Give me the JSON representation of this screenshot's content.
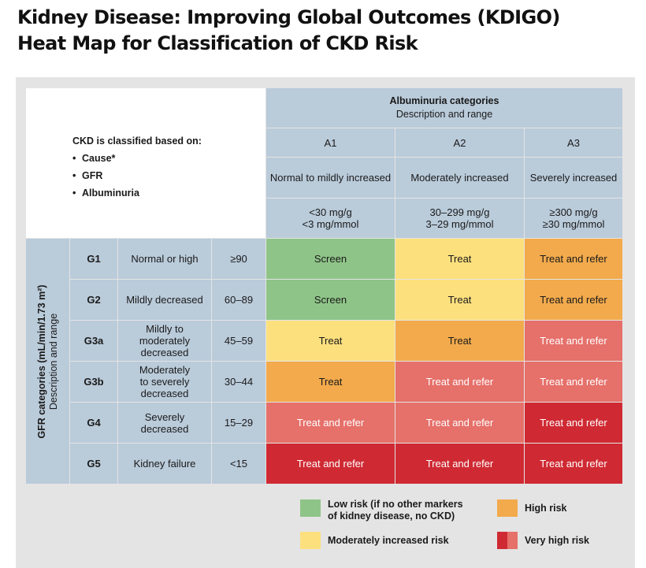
{
  "title": {
    "line1": "Kidney Disease: Improving Global Outcomes (KDIGO)",
    "line2": "Heat Map for Classification of CKD Risk"
  },
  "classification": {
    "heading": "CKD is classified based on:",
    "items": [
      "Cause*",
      "GFR",
      "Albuminuria"
    ]
  },
  "albuminuria": {
    "title": "Albuminuria categories",
    "subtitle": "Description and range",
    "categories": [
      {
        "code": "A1",
        "description": "Normal to mildly increased",
        "range": "<30 mg/g\n<3 mg/mmol"
      },
      {
        "code": "A2",
        "description": "Moderately increased",
        "range": "30–299 mg/g\n3–29 mg/mmol"
      },
      {
        "code": "A3",
        "description": "Severely increased",
        "range": "≥300 mg/g\n≥30 mg/mmol"
      }
    ]
  },
  "gfr": {
    "title": "GFR categories (mL/min/1.73 m²)",
    "subtitle": "Description and range",
    "rows": [
      {
        "code": "G1",
        "description": "Normal or high",
        "range": "≥90",
        "cells": [
          "Screen",
          "Treat",
          "Treat and refer"
        ],
        "risk": [
          "low",
          "moderate",
          "high"
        ]
      },
      {
        "code": "G2",
        "description": "Mildly decreased",
        "range": "60–89",
        "cells": [
          "Screen",
          "Treat",
          "Treat and refer"
        ],
        "risk": [
          "low",
          "moderate",
          "high"
        ]
      },
      {
        "code": "G3a",
        "description": "Mildly to\nmoderately\ndecreased",
        "range": "45–59",
        "cells": [
          "Treat",
          "Treat",
          "Treat and refer"
        ],
        "risk": [
          "moderate",
          "high",
          "very_high_light"
        ]
      },
      {
        "code": "G3b",
        "description": "Moderately\nto severely\ndecreased",
        "range": "30–44",
        "cells": [
          "Treat",
          "Treat and refer",
          "Treat and refer"
        ],
        "risk": [
          "high",
          "very_high_light",
          "very_high_light"
        ]
      },
      {
        "code": "G4",
        "description": "Severely\ndecreased",
        "range": "15–29",
        "cells": [
          "Treat and refer",
          "Treat and refer",
          "Treat and refer"
        ],
        "risk": [
          "very_high_light",
          "very_high_light",
          "very_high_dark"
        ]
      },
      {
        "code": "G5",
        "description": "Kidney failure",
        "range": "<15",
        "cells": [
          "Treat and refer",
          "Treat and refer",
          "Treat and refer"
        ],
        "risk": [
          "very_high_dark",
          "very_high_dark",
          "very_high_dark"
        ]
      }
    ]
  },
  "legend": {
    "low": "Low risk (if no other markers\nof kidney disease, no CKD)",
    "moderate": "Moderately increased risk",
    "high": "High risk",
    "very_high": "Very high risk"
  },
  "colors": {
    "low": "#8fc488",
    "moderate": "#fde07e",
    "high": "#f2aa4c",
    "very_high_light": "#e6706a",
    "very_high_dark": "#cf2a33",
    "header": "#bacbda",
    "panel": "#e4e4e4"
  }
}
